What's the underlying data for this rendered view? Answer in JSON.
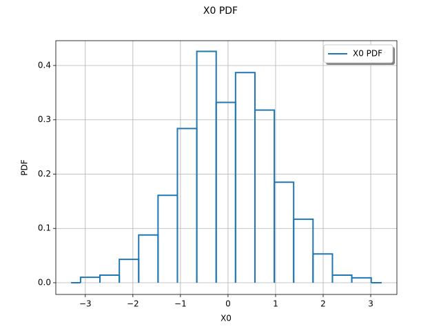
{
  "chart_data": {
    "type": "histogram",
    "title": "X0 PDF",
    "x_label": "X0",
    "y_label": "PDF",
    "bins": [
      -3.3,
      -3.1,
      -2.693,
      -2.285,
      -1.878,
      -1.471,
      -1.064,
      -0.656,
      -0.249,
      0.158,
      0.566,
      0.973,
      1.38,
      1.787,
      2.195,
      2.602,
      3.01,
      3.23
    ],
    "series": [
      {
        "name": "X0 PDF",
        "color": "#1f77b4",
        "values": [
          0,
          0.01,
          0.014,
          0.043,
          0.088,
          0.161,
          0.284,
          0.426,
          0.332,
          0.387,
          0.318,
          0.185,
          0.117,
          0.053,
          0.014,
          0.009,
          0
        ]
      }
    ],
    "xlim": [
      -3.62,
      3.55
    ],
    "ylim": [
      -0.0216,
      0.4457
    ],
    "xticks": [
      {
        "value": -3,
        "label": "−3"
      },
      {
        "value": -2,
        "label": "−2"
      },
      {
        "value": -1,
        "label": "−1"
      },
      0,
      1,
      2,
      3
    ],
    "yticks": [
      {
        "value": 0,
        "label": "0.0"
      },
      0.1,
      0.2,
      0.3,
      0.4
    ],
    "grid": true,
    "legend": "upper right"
  }
}
